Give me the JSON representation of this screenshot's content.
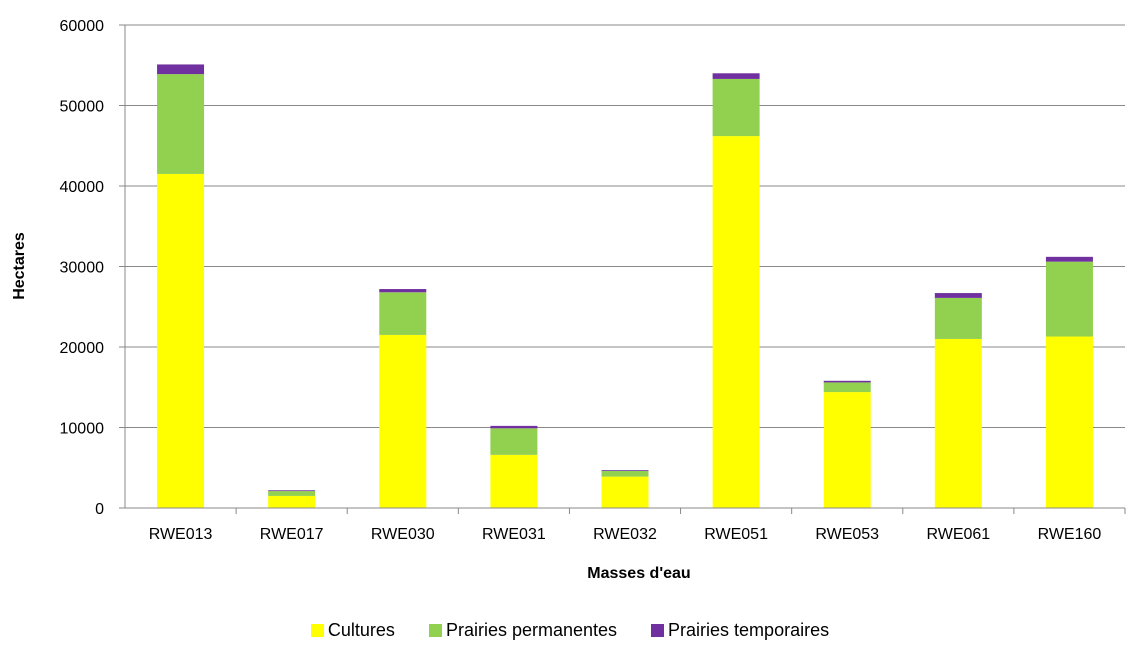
{
  "chart_data": {
    "type": "bar",
    "stacked": true,
    "categories": [
      "RWE013",
      "RWE017",
      "RWE030",
      "RWE031",
      "RWE032",
      "RWE051",
      "RWE053",
      "RWE061",
      "RWE160"
    ],
    "series": [
      {
        "name": "Cultures",
        "color": "#FFFF00",
        "values": [
          41500,
          1500,
          21500,
          6600,
          3900,
          46200,
          14400,
          21000,
          21300
        ]
      },
      {
        "name": "Prairies permanentes",
        "color": "#92D050",
        "values": [
          12400,
          600,
          5300,
          3300,
          700,
          7100,
          1200,
          5100,
          9300
        ]
      },
      {
        "name": "Prairies temporaires",
        "color": "#7030A0",
        "values": [
          1200,
          100,
          400,
          300,
          100,
          700,
          200,
          600,
          600
        ]
      }
    ],
    "xlabel": "Masses d'eau",
    "ylabel": "Hectares",
    "ylim": [
      0,
      60000
    ],
    "yticks": [
      0,
      10000,
      20000,
      30000,
      40000,
      50000,
      60000
    ],
    "grid": true,
    "legend_position": "bottom"
  }
}
